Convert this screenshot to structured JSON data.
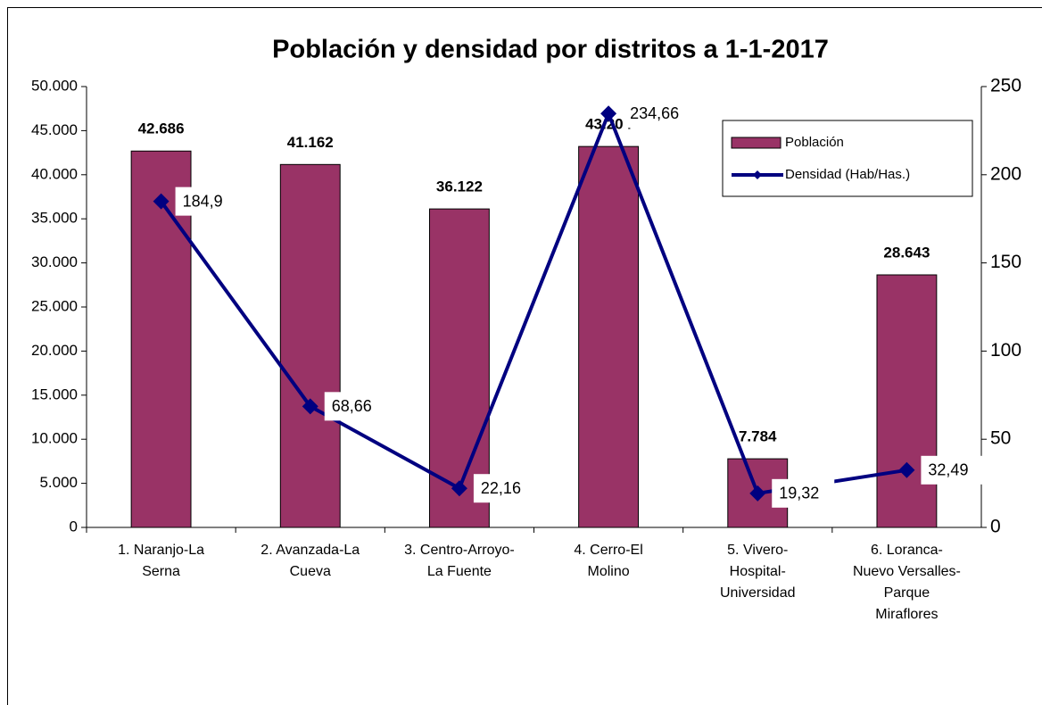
{
  "chart_data": {
    "type": "bar",
    "title": "Población y densidad por distritos a 1-1-2017",
    "categories": [
      [
        "1. Naranjo-La",
        "Serna"
      ],
      [
        "2. Avanzada-La",
        "Cueva"
      ],
      [
        "3. Centro-Arroyo-",
        "La Fuente"
      ],
      [
        "4. Cerro-El",
        "Molino"
      ],
      [
        "5. Vivero-",
        "Hospital-",
        "Universidad"
      ],
      [
        "6. Loranca-",
        "Nuevo Versalles-",
        "Parque",
        "Miraflores"
      ]
    ],
    "series": [
      {
        "name": "Población",
        "type": "bar",
        "color": "#993366",
        "values": [
          42686,
          41162,
          36122,
          43204,
          7784,
          28643
        ],
        "value_labels": [
          "42.686",
          "41.162",
          "36.122",
          "43.204",
          "7.784",
          "28.643"
        ]
      },
      {
        "name": "Densidad (Hab/Has.)",
        "type": "line",
        "axis": "y2",
        "color": "#000080",
        "values": [
          184.9,
          68.66,
          22.16,
          234.66,
          19.32,
          32.49
        ],
        "value_labels": [
          "184,9",
          "68,66",
          "22,16",
          "234,66",
          "19,32",
          "32,49"
        ]
      }
    ],
    "ylim": [
      0,
      50000
    ],
    "yticks": [
      0,
      {
        "value": 5000,
        "label": "5.000"
      },
      {
        "value": 10000,
        "label": "10.000"
      },
      {
        "value": 15000,
        "label": "15.000"
      },
      {
        "value": 20000,
        "label": "20.000"
      },
      {
        "value": 25000,
        "label": "25.000"
      },
      {
        "value": 30000,
        "label": "30.000"
      },
      {
        "value": 35000,
        "label": "35.000"
      },
      {
        "value": 40000,
        "label": "40.000"
      },
      {
        "value": 45000,
        "label": "45.000"
      },
      {
        "value": 50000,
        "label": "50.000"
      }
    ],
    "y2lim": [
      0,
      250
    ],
    "y2ticks": [
      0,
      50,
      100,
      150,
      200,
      250
    ],
    "legend": "upper right"
  }
}
